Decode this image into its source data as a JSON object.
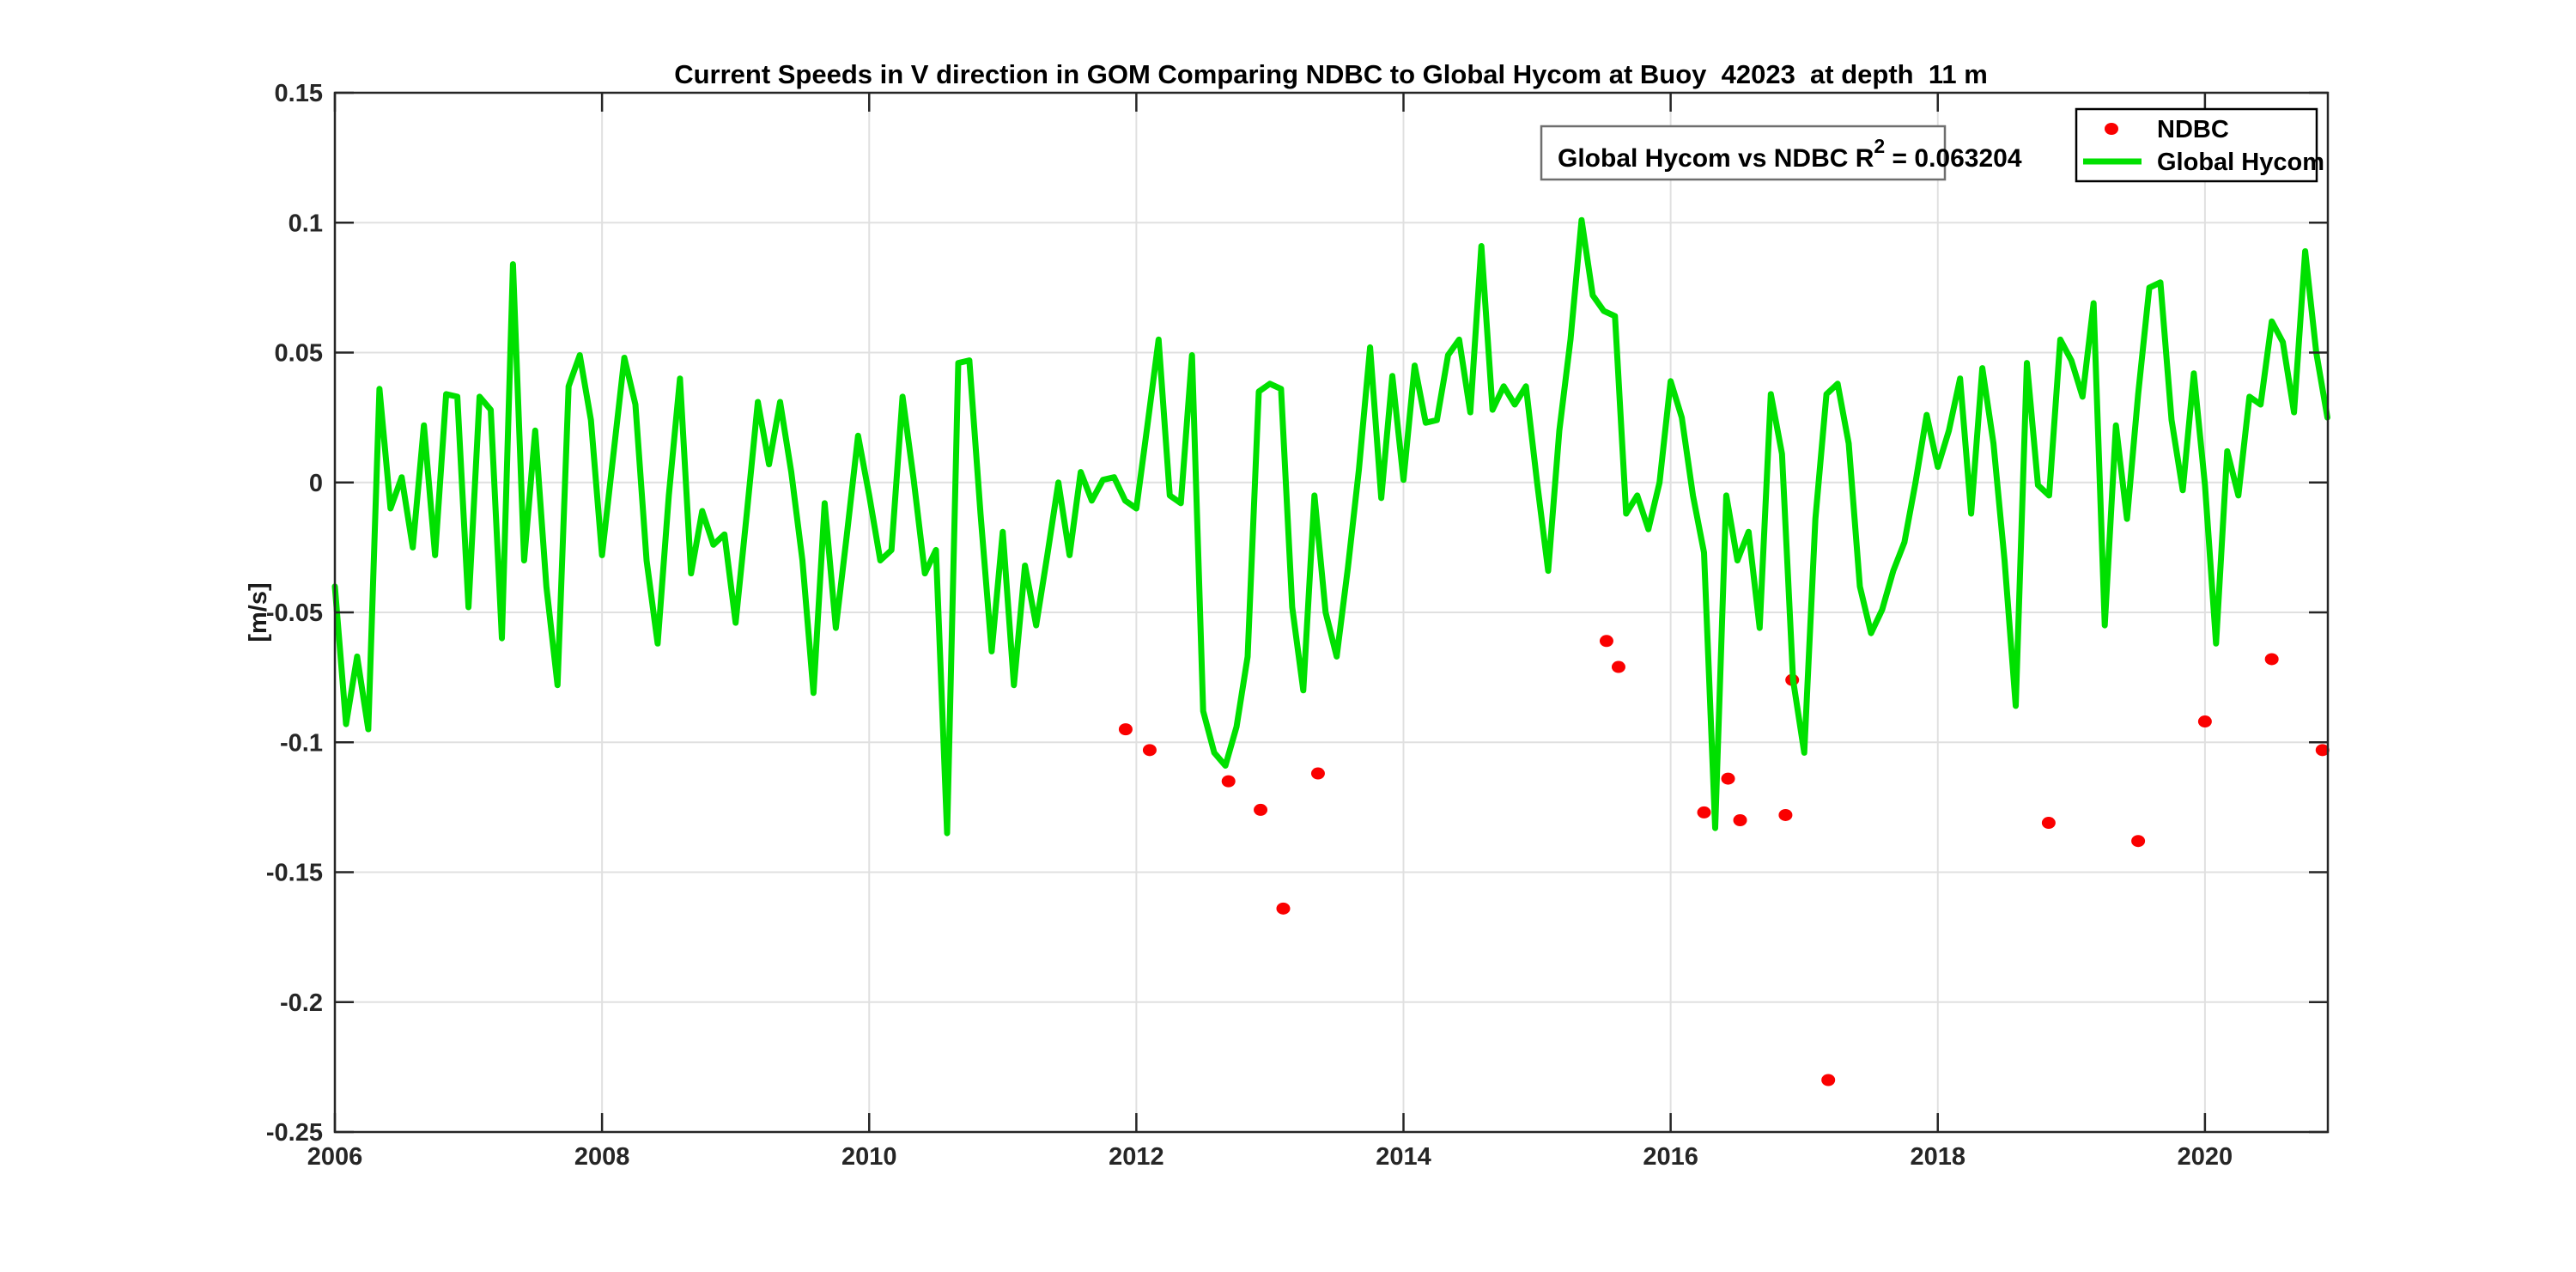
{
  "title": "Current Speeds in V direction in GOM Comparing NDBC to Global Hycom at Buoy  42023  at depth  11 m",
  "annotation": {
    "prefix": "Global Hycom vs NDBC R",
    "superscript": "2",
    "suffix": " = 0.063204"
  },
  "legend": {
    "items": [
      {
        "label": "NDBC",
        "marker": "dot",
        "color": "#fa0000"
      },
      {
        "label": "Global Hycom",
        "marker": "line",
        "color": "#00e000"
      }
    ]
  },
  "chart_data": {
    "type": "line",
    "title": "Current Speeds in V direction in GOM Comparing NDBC to Global Hycom at Buoy  42023  at depth  11 m",
    "xlabel": "",
    "ylabel": "[m/s]",
    "xlim": [
      2006,
      2020.92
    ],
    "ylim": [
      -0.25,
      0.15
    ],
    "grid": true,
    "grid_color": "#e0e0e0",
    "axis_color": "#262626",
    "legend_position": "northeast",
    "x_tick_values": [
      2006,
      2008,
      2010,
      2012,
      2014,
      2016,
      2018,
      2020
    ],
    "x_tick_labels": [
      "2006",
      "2008",
      "2010",
      "2012",
      "2014",
      "2016",
      "2018",
      "2020"
    ],
    "y_tick_values": [
      0.15,
      0.1,
      0.05,
      0,
      -0.05,
      -0.1,
      -0.15,
      -0.2,
      -0.25
    ],
    "y_tick_labels": [
      "0.15",
      "0.1",
      "0.05",
      "0",
      "-0.05",
      "-0.1",
      "-0.15",
      "-0.2",
      "-0.25"
    ],
    "series": [
      {
        "name": "NDBC",
        "type": "scatter",
        "color": "#fa0000",
        "points": [
          [
            2011.92,
            -0.095
          ],
          [
            2012.1,
            -0.103
          ],
          [
            2012.69,
            -0.115
          ],
          [
            2012.93,
            -0.126
          ],
          [
            2013.1,
            -0.164
          ],
          [
            2013.36,
            -0.112
          ],
          [
            2015.52,
            -0.061
          ],
          [
            2015.61,
            -0.071
          ],
          [
            2016.25,
            -0.127
          ],
          [
            2016.43,
            -0.114
          ],
          [
            2016.52,
            -0.13
          ],
          [
            2016.86,
            -0.128
          ],
          [
            2016.91,
            -0.076
          ],
          [
            2017.18,
            -0.23
          ],
          [
            2018.83,
            -0.131
          ],
          [
            2019.5,
            -0.138
          ],
          [
            2020.0,
            -0.092
          ],
          [
            2020.5,
            -0.068
          ],
          [
            2020.88,
            -0.103
          ]
        ]
      },
      {
        "name": "Global Hycom",
        "type": "line",
        "color": "#00e000",
        "x_start_year": 2006,
        "points_per_year": 12,
        "values": [
          -0.04,
          -0.093,
          -0.067,
          -0.095,
          0.036,
          -0.01,
          0.002,
          -0.025,
          0.022,
          -0.028,
          0.034,
          0.033,
          -0.048,
          0.033,
          0.028,
          -0.06,
          0.084,
          -0.03,
          0.02,
          -0.04,
          -0.078,
          0.037,
          0.049,
          0.024,
          -0.028,
          0.01,
          0.048,
          0.03,
          -0.03,
          -0.062,
          -0.005,
          0.04,
          -0.035,
          -0.011,
          -0.024,
          -0.02,
          -0.054,
          -0.012,
          0.031,
          0.007,
          0.031,
          0.004,
          -0.03,
          -0.081,
          -0.008,
          -0.056,
          -0.02,
          0.018,
          -0.005,
          -0.03,
          -0.026,
          0.033,
          0.001,
          -0.035,
          -0.026,
          -0.135,
          0.046,
          0.047,
          -0.012,
          -0.065,
          -0.019,
          -0.078,
          -0.032,
          -0.055,
          -0.028,
          0.0,
          -0.028,
          0.004,
          -0.007,
          0.001,
          0.002,
          -0.007,
          -0.01,
          0.022,
          0.055,
          -0.005,
          -0.008,
          0.049,
          -0.088,
          -0.104,
          -0.109,
          -0.094,
          -0.067,
          0.035,
          0.038,
          0.036,
          -0.048,
          -0.08,
          -0.005,
          -0.05,
          -0.067,
          -0.033,
          0.005,
          0.052,
          -0.006,
          0.041,
          0.001,
          0.045,
          0.023,
          0.024,
          0.049,
          0.055,
          0.027,
          0.091,
          0.028,
          0.037,
          0.03,
          0.037,
          0.0,
          -0.034,
          0.02,
          0.055,
          0.101,
          0.072,
          0.066,
          0.064,
          -0.012,
          -0.005,
          -0.018,
          0.0,
          0.039,
          0.025,
          -0.005,
          -0.027,
          -0.133,
          -0.005,
          -0.03,
          -0.019,
          -0.056,
          0.034,
          0.011,
          -0.076,
          -0.104,
          -0.014,
          0.034,
          0.038,
          0.015,
          -0.04,
          -0.058,
          -0.049,
          -0.034,
          -0.023,
          0.0,
          0.026,
          0.006,
          0.02,
          0.04,
          -0.012,
          0.044,
          0.015,
          -0.03,
          -0.086,
          0.046,
          -0.001,
          -0.005,
          0.055,
          0.047,
          0.033,
          0.069,
          -0.055,
          0.022,
          -0.014,
          0.034,
          0.075,
          0.077,
          0.024,
          -0.003,
          0.042,
          -0.001,
          -0.062,
          0.012,
          -0.005,
          0.033,
          0.03,
          0.062,
          0.054,
          0.027,
          0.089,
          0.05,
          0.025
        ]
      }
    ]
  }
}
